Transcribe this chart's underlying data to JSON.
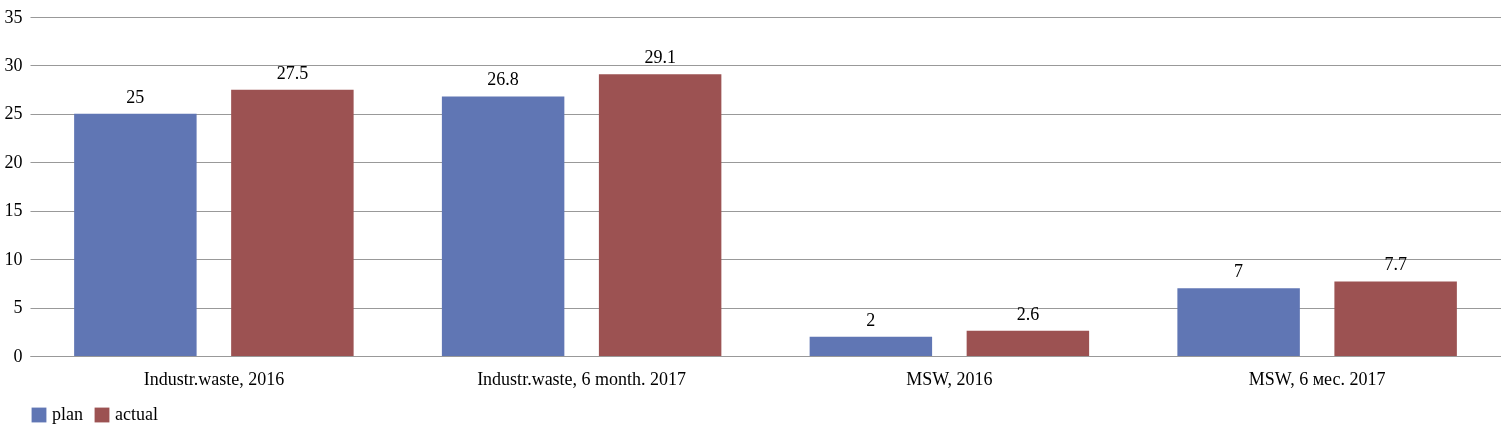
{
  "chart_data": {
    "type": "bar",
    "categories": [
      "Industr.waste, 2016",
      "Industr.waste, 6 month. 2017",
      "MSW, 2016",
      "MSW, 6 мес. 2017"
    ],
    "series": [
      {
        "name": "plan",
        "color": "#6076b4",
        "values": [
          25,
          26.8,
          2,
          7
        ]
      },
      {
        "name": "actual",
        "color": "#9c5252",
        "values": [
          27.5,
          29.1,
          2.6,
          7.7
        ]
      }
    ],
    "ylim": [
      0,
      35
    ],
    "yticks": [
      0,
      5,
      10,
      15,
      20,
      25,
      30,
      35
    ],
    "grid": "y",
    "legend": "bottom",
    "data_labels": true
  }
}
